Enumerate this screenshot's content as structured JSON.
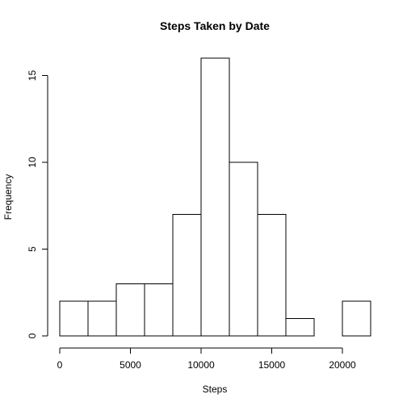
{
  "chart_data": {
    "type": "histogram",
    "title": "Steps Taken by Date",
    "xlabel": "Steps",
    "ylabel": "Frequency",
    "bins": [
      {
        "start": 0,
        "end": 2000,
        "count": 2
      },
      {
        "start": 2000,
        "end": 4000,
        "count": 2
      },
      {
        "start": 4000,
        "end": 6000,
        "count": 3
      },
      {
        "start": 6000,
        "end": 8000,
        "count": 3
      },
      {
        "start": 8000,
        "end": 10000,
        "count": 7
      },
      {
        "start": 10000,
        "end": 12000,
        "count": 16
      },
      {
        "start": 12000,
        "end": 14000,
        "count": 10
      },
      {
        "start": 14000,
        "end": 16000,
        "count": 7
      },
      {
        "start": 16000,
        "end": 18000,
        "count": 1
      },
      {
        "start": 18000,
        "end": 20000,
        "count": 0
      },
      {
        "start": 20000,
        "end": 22000,
        "count": 2
      }
    ],
    "xlim": [
      0,
      22000
    ],
    "ylim": [
      0,
      16
    ],
    "x_ticks": [
      0,
      5000,
      10000,
      15000,
      20000
    ],
    "x_tick_labels": [
      "0",
      "5000",
      "10000",
      "15000",
      "20000"
    ],
    "y_ticks": [
      0,
      5,
      10,
      15
    ],
    "y_tick_labels": [
      "0",
      "5",
      "10",
      "15"
    ],
    "bar_fill": "#ffffff",
    "bar_stroke": "#000000",
    "grid": false,
    "legend": "none"
  }
}
